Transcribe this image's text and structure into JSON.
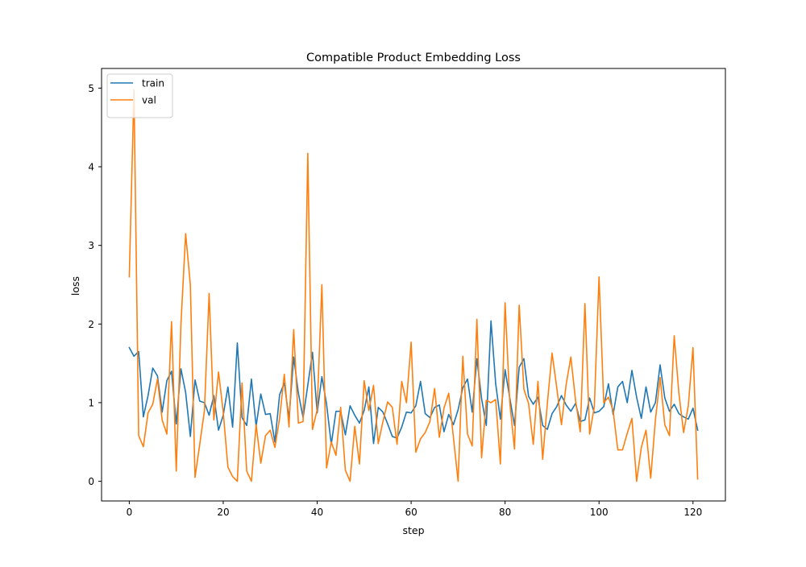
{
  "chart_data": {
    "type": "line",
    "title": "Compatible Product Embedding Loss",
    "xlabel": "step",
    "ylabel": "loss",
    "xlim": [
      -5.9,
      126.9
    ],
    "ylim": [
      -0.25,
      5.25
    ],
    "xticks": [
      0,
      20,
      40,
      60,
      80,
      100,
      120
    ],
    "yticks": [
      0,
      1,
      2,
      3,
      4,
      5
    ],
    "grid": false,
    "legend_position": "top-left",
    "series": [
      {
        "name": "train",
        "color": "#1f77b4",
        "values": [
          1.7,
          1.59,
          1.65,
          0.82,
          1.09,
          1.44,
          1.34,
          0.88,
          1.28,
          1.4,
          0.73,
          1.43,
          1.13,
          0.57,
          1.29,
          1.02,
          1.0,
          0.84,
          1.09,
          0.65,
          0.84,
          1.2,
          0.69,
          1.76,
          0.81,
          0.71,
          1.3,
          0.7,
          1.11,
          0.85,
          0.86,
          0.5,
          1.1,
          1.25,
          0.8,
          1.58,
          1.12,
          0.81,
          1.22,
          1.64,
          0.87,
          1.33,
          0.98,
          0.47,
          0.89,
          0.89,
          0.59,
          0.96,
          0.84,
          0.74,
          0.9,
          1.2,
          0.48,
          0.94,
          0.88,
          0.73,
          0.57,
          0.55,
          0.69,
          0.88,
          0.87,
          0.96,
          1.27,
          0.86,
          0.81,
          0.94,
          0.97,
          0.63,
          0.85,
          0.72,
          0.91,
          1.19,
          1.3,
          0.88,
          1.56,
          1.05,
          0.71,
          2.04,
          1.24,
          0.79,
          1.42,
          1.06,
          0.71,
          1.45,
          1.56,
          1.08,
          0.98,
          1.07,
          0.71,
          0.66,
          0.86,
          0.95,
          1.09,
          0.97,
          0.89,
          0.99,
          0.76,
          0.78,
          1.06,
          0.87,
          0.89,
          0.95,
          1.24,
          0.85,
          1.2,
          1.27,
          1.0,
          1.41,
          1.07,
          0.8,
          1.2,
          0.88,
          1.0,
          1.48,
          1.06,
          0.89,
          0.98,
          0.86,
          0.82,
          0.79,
          0.93,
          0.65
        ]
      },
      {
        "name": "val",
        "color": "#ff7f0e",
        "values": [
          2.6,
          4.98,
          0.58,
          0.44,
          0.87,
          0.98,
          1.3,
          0.78,
          0.6,
          2.03,
          0.13,
          2.0,
          3.15,
          2.5,
          0.05,
          0.47,
          0.9,
          2.39,
          0.78,
          1.39,
          0.88,
          0.18,
          0.06,
          0.0,
          1.25,
          0.13,
          0.0,
          0.72,
          0.23,
          0.58,
          0.65,
          0.43,
          0.8,
          1.36,
          0.69,
          1.93,
          0.74,
          0.76,
          4.17,
          0.66,
          0.91,
          2.5,
          0.17,
          0.5,
          0.33,
          0.94,
          0.14,
          0.0,
          0.7,
          0.22,
          1.28,
          0.9,
          1.22,
          0.48,
          0.76,
          1.01,
          0.94,
          0.47,
          1.27,
          1.0,
          1.77,
          0.37,
          0.54,
          0.62,
          0.76,
          1.18,
          0.56,
          0.93,
          1.12,
          0.56,
          0.0,
          1.59,
          0.6,
          0.45,
          2.06,
          0.3,
          1.03,
          1.0,
          1.04,
          0.22,
          2.27,
          1.0,
          0.41,
          2.24,
          1.17,
          0.99,
          0.47,
          1.27,
          0.28,
          0.99,
          1.63,
          1.19,
          0.72,
          1.23,
          1.58,
          1.03,
          0.63,
          2.26,
          0.6,
          0.95,
          2.6,
          1.0,
          1.07,
          0.9,
          0.4,
          0.4,
          0.61,
          0.8,
          0.0,
          0.43,
          0.65,
          0.04,
          0.78,
          1.32,
          0.72,
          0.58,
          1.85,
          1.12,
          0.62,
          0.96,
          1.7,
          0.03
        ]
      }
    ]
  }
}
